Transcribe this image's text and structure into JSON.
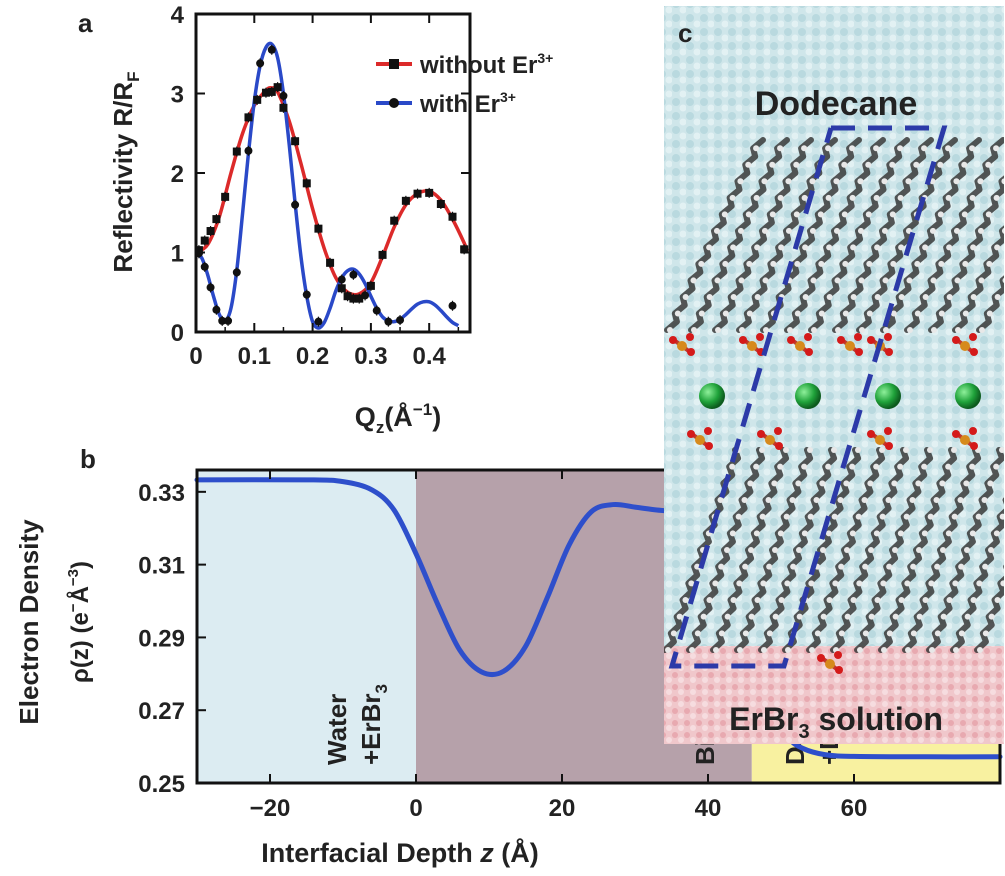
{
  "panels": {
    "a": "a",
    "b": "b",
    "c": "c"
  },
  "chart_data": [
    {
      "id": "a",
      "type": "scatter",
      "xlabel_main": "Q",
      "xlabel_sub": "z",
      "xlabel_unit": "(Å",
      "xlabel_unit_exp": "−1",
      "xlabel_close": ")",
      "ylabel_main": "Reflectivity R/R",
      "ylabel_sub": "F",
      "xlim": [
        0,
        0.47
      ],
      "ylim": [
        0,
        4
      ],
      "xticks": [
        0,
        0.1,
        0.2,
        0.3,
        0.4
      ],
      "xtick_labels": [
        "0",
        "0.1",
        "0.2",
        "0.3",
        "0.4"
      ],
      "yticks": [
        0,
        1,
        2,
        3,
        4
      ],
      "ytick_labels": [
        "0",
        "1",
        "2",
        "3",
        "4"
      ],
      "legend_position": "top-right",
      "series": [
        {
          "name": "without Er",
          "name_sup": "3+",
          "color": "#dc2a2a",
          "marker": "square",
          "fit": [
            [
              0,
              1.0
            ],
            [
              0.02,
              1.1
            ],
            [
              0.04,
              1.45
            ],
            [
              0.06,
              2.0
            ],
            [
              0.08,
              2.5
            ],
            [
              0.1,
              2.85
            ],
            [
              0.12,
              3.04
            ],
            [
              0.13,
              3.07
            ],
            [
              0.14,
              3.02
            ],
            [
              0.16,
              2.65
            ],
            [
              0.18,
              2.12
            ],
            [
              0.2,
              1.55
            ],
            [
              0.22,
              1.05
            ],
            [
              0.24,
              0.68
            ],
            [
              0.26,
              0.5
            ],
            [
              0.28,
              0.48
            ],
            [
              0.3,
              0.62
            ],
            [
              0.32,
              0.95
            ],
            [
              0.34,
              1.32
            ],
            [
              0.36,
              1.6
            ],
            [
              0.38,
              1.74
            ],
            [
              0.4,
              1.77
            ],
            [
              0.42,
              1.66
            ],
            [
              0.44,
              1.42
            ],
            [
              0.46,
              1.12
            ],
            [
              0.465,
              1.02
            ]
          ],
          "points": [
            [
              0.005,
              1.03
            ],
            [
              0.015,
              1.15
            ],
            [
              0.025,
              1.27
            ],
            [
              0.035,
              1.42
            ],
            [
              0.05,
              1.7
            ],
            [
              0.07,
              2.27
            ],
            [
              0.09,
              2.7
            ],
            [
              0.105,
              2.92
            ],
            [
              0.12,
              3.01
            ],
            [
              0.13,
              3.02
            ],
            [
              0.14,
              3.08
            ],
            [
              0.15,
              2.82
            ],
            [
              0.17,
              2.4
            ],
            [
              0.19,
              1.87
            ],
            [
              0.21,
              1.3
            ],
            [
              0.23,
              0.87
            ],
            [
              0.25,
              0.55
            ],
            [
              0.26,
              0.45
            ],
            [
              0.27,
              0.42
            ],
            [
              0.28,
              0.42
            ],
            [
              0.3,
              0.58
            ],
            [
              0.32,
              0.97
            ],
            [
              0.34,
              1.4
            ],
            [
              0.36,
              1.65
            ],
            [
              0.38,
              1.74
            ],
            [
              0.4,
              1.75
            ],
            [
              0.42,
              1.61
            ],
            [
              0.44,
              1.45
            ],
            [
              0.46,
              1.04
            ]
          ]
        },
        {
          "name": "with Er",
          "name_sup": "3+",
          "color": "#2a49c8",
          "marker": "circle",
          "fit": [
            [
              0,
              1.0
            ],
            [
              0.01,
              0.93
            ],
            [
              0.02,
              0.72
            ],
            [
              0.03,
              0.45
            ],
            [
              0.04,
              0.22
            ],
            [
              0.05,
              0.14
            ],
            [
              0.06,
              0.3
            ],
            [
              0.07,
              0.78
            ],
            [
              0.08,
              1.5
            ],
            [
              0.09,
              2.25
            ],
            [
              0.1,
              2.9
            ],
            [
              0.11,
              3.35
            ],
            [
              0.12,
              3.58
            ],
            [
              0.13,
              3.62
            ],
            [
              0.14,
              3.45
            ],
            [
              0.15,
              3.0
            ],
            [
              0.16,
              2.35
            ],
            [
              0.17,
              1.62
            ],
            [
              0.18,
              0.95
            ],
            [
              0.19,
              0.45
            ],
            [
              0.2,
              0.13
            ],
            [
              0.21,
              0.05
            ],
            [
              0.22,
              0.12
            ],
            [
              0.23,
              0.3
            ],
            [
              0.24,
              0.52
            ],
            [
              0.25,
              0.68
            ],
            [
              0.26,
              0.77
            ],
            [
              0.27,
              0.79
            ],
            [
              0.28,
              0.73
            ],
            [
              0.29,
              0.61
            ],
            [
              0.3,
              0.45
            ],
            [
              0.31,
              0.3
            ],
            [
              0.32,
              0.19
            ],
            [
              0.33,
              0.14
            ],
            [
              0.34,
              0.13
            ],
            [
              0.35,
              0.16
            ],
            [
              0.36,
              0.22
            ],
            [
              0.37,
              0.29
            ],
            [
              0.38,
              0.35
            ],
            [
              0.39,
              0.38
            ],
            [
              0.4,
              0.38
            ],
            [
              0.41,
              0.34
            ],
            [
              0.42,
              0.27
            ],
            [
              0.43,
              0.19
            ],
            [
              0.44,
              0.12
            ],
            [
              0.45,
              0.08
            ]
          ],
          "points": [
            [
              0.005,
              0.99
            ],
            [
              0.015,
              0.82
            ],
            [
              0.025,
              0.56
            ],
            [
              0.035,
              0.28
            ],
            [
              0.045,
              0.14
            ],
            [
              0.055,
              0.14
            ],
            [
              0.07,
              0.75
            ],
            [
              0.09,
              2.28
            ],
            [
              0.11,
              3.38
            ],
            [
              0.13,
              3.55
            ],
            [
              0.15,
              2.97
            ],
            [
              0.17,
              1.6
            ],
            [
              0.19,
              0.47
            ],
            [
              0.21,
              0.13
            ],
            [
              0.25,
              0.66
            ],
            [
              0.27,
              0.72
            ],
            [
              0.29,
              0.46
            ],
            [
              0.31,
              0.27
            ],
            [
              0.33,
              0.13
            ],
            [
              0.35,
              0.15
            ],
            [
              0.44,
              0.33
            ]
          ]
        }
      ]
    },
    {
      "id": "b",
      "type": "line",
      "xlabel_main": "Interfacial Depth ",
      "xlabel_italic": "z",
      "xlabel_unit": " (Å)",
      "ylabel_line1": "Electron Density",
      "ylabel_line2": "ρ(z) (e",
      "ylabel_line2_sup": "−",
      "ylabel_line2_mid": "Å",
      "ylabel_line2_sup2": "−3",
      "ylabel_line2_close": ")",
      "xlim": [
        -30,
        80
      ],
      "ylim": [
        0.25,
        0.336
      ],
      "xticks": [
        -20,
        0,
        20,
        40,
        60
      ],
      "xtick_labels": [
        "−20",
        "0",
        "20",
        "40",
        "60"
      ],
      "yticks": [
        0.25,
        0.27,
        0.29,
        0.31,
        0.33
      ],
      "ytick_labels": [
        "0.25",
        "0.27",
        "0.29",
        "0.31",
        "0.33"
      ],
      "regions": [
        {
          "from": -30,
          "to": 0,
          "color": "#dcecf2",
          "label_line1": "Water",
          "label_line2": "+ErBr",
          "label_line2_sub": "3"
        },
        {
          "from": 0,
          "to": 46,
          "color": "#b6a1aa",
          "label_line1": "Bilayer",
          "label_line2": "",
          "label_line2_sub": ""
        },
        {
          "from": 46,
          "to": 80,
          "color": "#f8f1a0",
          "label_line1": "Dodecane",
          "label_line2": "+DHDP",
          "label_line2_sub": ""
        }
      ],
      "series": [
        {
          "color": "#2e4fcb",
          "points": [
            [
              -30,
              0.3333
            ],
            [
              -15,
              0.3333
            ],
            [
              -10,
              0.3328
            ],
            [
              -6,
              0.3305
            ],
            [
              -3,
              0.325
            ],
            [
              0,
              0.313
            ],
            [
              3,
              0.299
            ],
            [
              6,
              0.2865
            ],
            [
              9,
              0.2805
            ],
            [
              12,
              0.2807
            ],
            [
              15,
              0.2875
            ],
            [
              18,
              0.301
            ],
            [
              21,
              0.3155
            ],
            [
              24,
              0.3245
            ],
            [
              27,
              0.3265
            ],
            [
              30,
              0.3258
            ],
            [
              33,
              0.325
            ],
            [
              36,
              0.3245
            ],
            [
              39,
              0.3235
            ],
            [
              41,
              0.3205
            ],
            [
              43,
              0.3125
            ],
            [
              45,
              0.2985
            ],
            [
              47,
              0.2815
            ],
            [
              49,
              0.27
            ],
            [
              51,
              0.2625
            ],
            [
              53,
              0.2595
            ],
            [
              56,
              0.2578
            ],
            [
              60,
              0.2573
            ],
            [
              70,
              0.2572
            ],
            [
              80,
              0.2572
            ]
          ]
        }
      ]
    }
  ],
  "simulation": {
    "top_label": "Dodecane",
    "bottom_label": "ErBr",
    "bottom_label_sub": "3",
    "bottom_label_rest": " solution",
    "dash_color": "#2c3aa8",
    "ion_color": "#1fa23a"
  }
}
